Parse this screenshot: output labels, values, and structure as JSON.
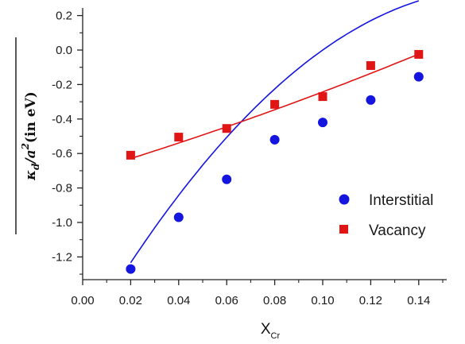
{
  "chart_data": {
    "type": "scatter",
    "xlabel": "X",
    "xlabel_sub": "Cr",
    "ylabel_parts": {
      "kappa": "κ",
      "sub_d": "d",
      "slash_a": "/a",
      "sup_2": "2",
      "unit": "(in eV)"
    },
    "xlim": [
      0.0,
      0.15
    ],
    "ylim": [
      -1.35,
      0.25
    ],
    "x_ticks": [
      "0.00",
      "0.02",
      "0.04",
      "0.06",
      "0.08",
      "0.10",
      "0.12",
      "0.14"
    ],
    "y_ticks": [
      "0.2",
      "0.0",
      "-0.2",
      "-0.4",
      "-0.6",
      "-0.8",
      "-1.0",
      "-1.2"
    ],
    "legend_position": "right-middle",
    "series": [
      {
        "name": "Interstitial",
        "marker": "circle",
        "color": "#1515e0",
        "x": [
          0.02,
          0.04,
          0.06,
          0.08,
          0.1,
          0.12,
          0.14
        ],
        "y": [
          -1.27,
          -0.97,
          -0.75,
          -0.52,
          -0.42,
          -0.29,
          -0.155
        ],
        "fit": [
          -1.68,
          23.7,
          -69.0
        ]
      },
      {
        "name": "Vacancy",
        "marker": "square",
        "color": "#e01515",
        "x": [
          0.02,
          0.04,
          0.06,
          0.08,
          0.1,
          0.12,
          0.14
        ],
        "y": [
          -0.61,
          -0.505,
          -0.455,
          -0.315,
          -0.27,
          -0.09,
          -0.025
        ],
        "fit": [
          -0.715,
          4.17,
          5.5
        ]
      }
    ]
  }
}
